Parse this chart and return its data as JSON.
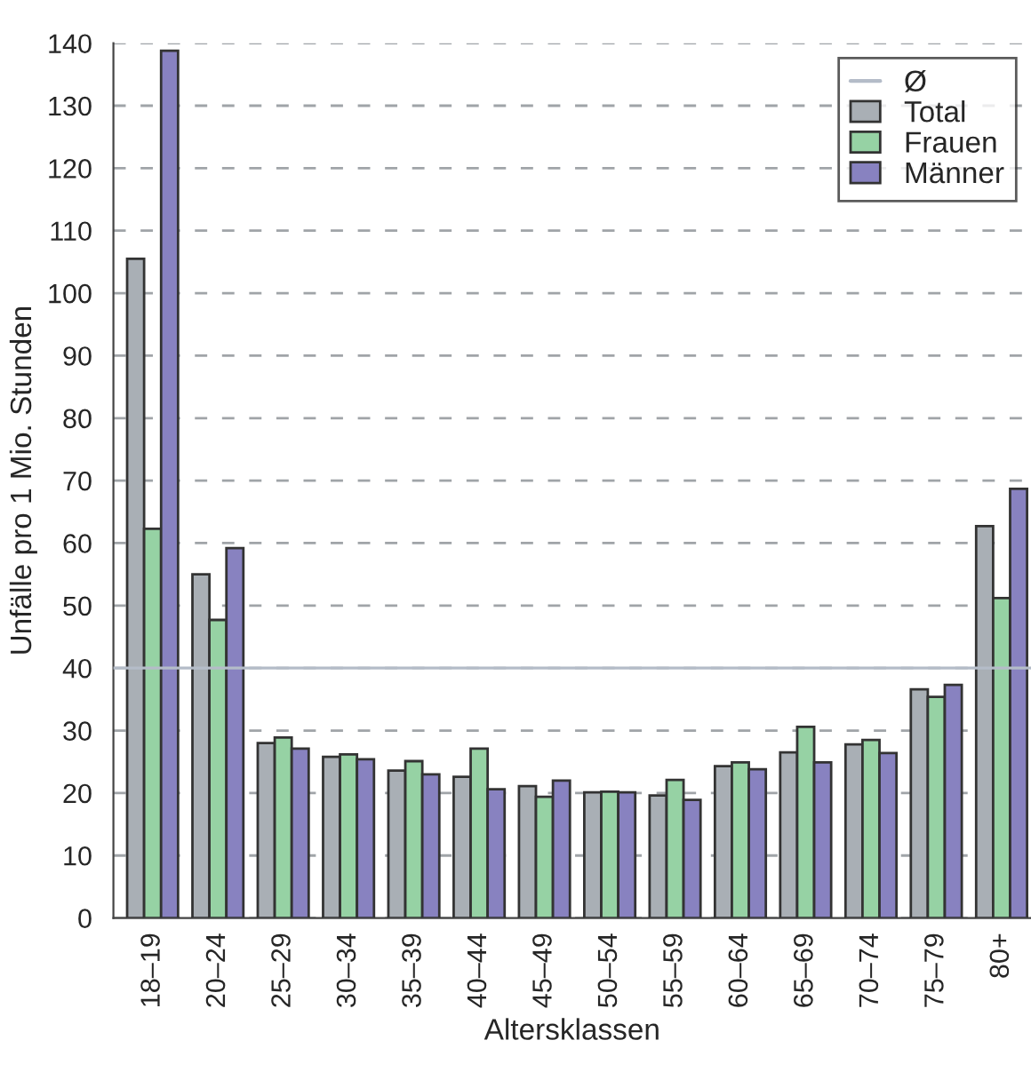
{
  "chart_data": {
    "type": "bar",
    "xlabel": "Altersklassen",
    "ylabel": "Unfälle pro 1 Mio. Stunden",
    "categories": [
      "18–19",
      "20–24",
      "25–29",
      "30–34",
      "35–39",
      "40–44",
      "45–49",
      "50–54",
      "55–59",
      "60–64",
      "65–69",
      "70–74",
      "75–79",
      "80+"
    ],
    "series": [
      {
        "name": "Total",
        "color": "#a9afb5",
        "values": [
          105.5,
          55,
          28,
          25.8,
          23.6,
          22.6,
          21.1,
          20.1,
          19.6,
          24.3,
          26.5,
          27.8,
          36.6,
          62.7
        ]
      },
      {
        "name": "Frauen",
        "color": "#96d2a4",
        "values": [
          62.3,
          47.7,
          28.9,
          26.2,
          25.1,
          27.1,
          19.4,
          20.2,
          22.1,
          24.9,
          30.6,
          28.5,
          35.4,
          51.2
        ]
      },
      {
        "name": "Männer",
        "color": "#8882c0",
        "values": [
          138.8,
          59.2,
          27.1,
          25.4,
          23,
          20.6,
          22,
          20.1,
          18.9,
          23.8,
          24.9,
          26.4,
          37.3,
          68.7
        ]
      }
    ],
    "ref_lines": [
      {
        "axis": "y",
        "value": 40,
        "label": "Ø",
        "color": "#b4bcc8",
        "line_style": "solid"
      }
    ],
    "ylim": [
      0,
      140
    ],
    "yticks": [
      0,
      10,
      20,
      30,
      40,
      50,
      60,
      70,
      80,
      90,
      100,
      110,
      120,
      130,
      140
    ],
    "grid": "y",
    "legend": "top right"
  }
}
